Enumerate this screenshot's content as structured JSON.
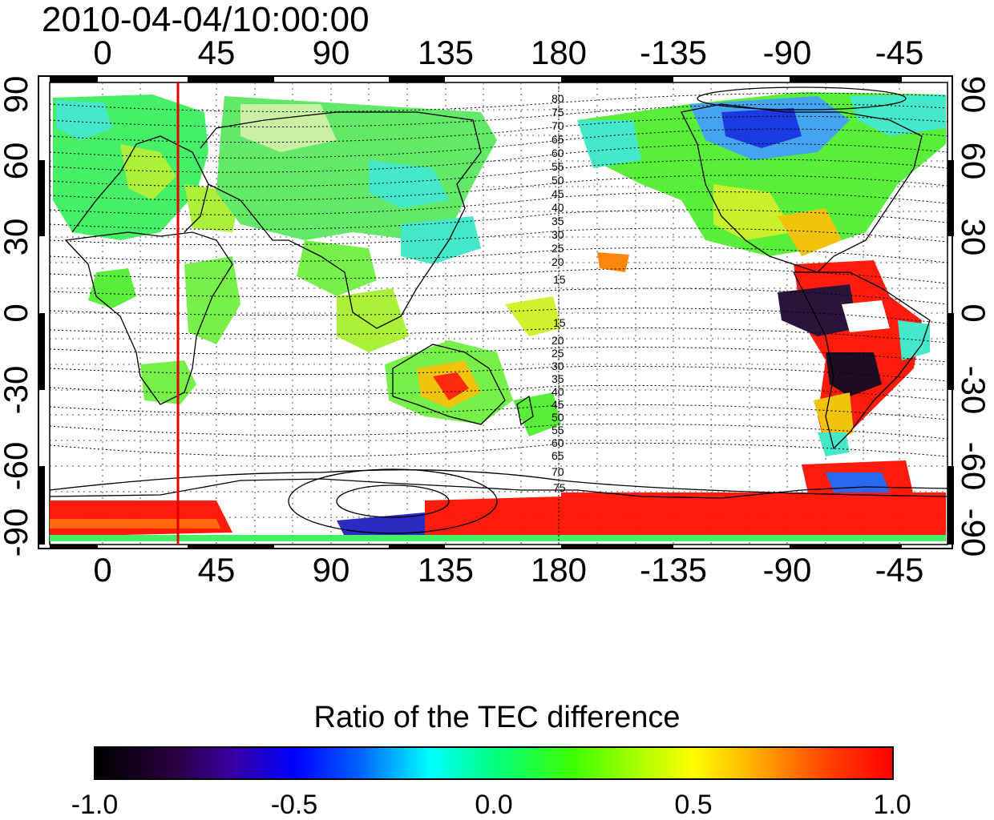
{
  "timestamp": "2010-04-04/10:00:00",
  "colorbar": {
    "title": "Ratio of the TEC difference",
    "ticks": [
      "-1.0",
      "-0.5",
      "0.0",
      "0.5",
      "1.0"
    ],
    "range": [
      -1.0,
      1.0
    ]
  },
  "longitude_ticks": [
    "0",
    "45",
    "90",
    "135",
    "180",
    "-135",
    "-90",
    "-45"
  ],
  "latitude_ticks": [
    "90",
    "60",
    "30",
    "0",
    "-30",
    "-60",
    "-90"
  ],
  "contour_labels_north": [
    "80",
    "75",
    "70",
    "65",
    "60",
    "55",
    "50",
    "45",
    "40",
    "35",
    "30",
    "25",
    "20",
    "15"
  ],
  "contour_labels_south": [
    "15",
    "20",
    "25",
    "30",
    "35",
    "40",
    "45",
    "50",
    "55",
    "60",
    "65",
    "70",
    "75"
  ],
  "marker_line_color": "#e00000",
  "map": {
    "projection": "equirectangular",
    "lon_center_start": -20,
    "features": [
      "coastlines",
      "magnetic-latitude-contours",
      "dotted-grid",
      "red-meridian-marker"
    ]
  }
}
